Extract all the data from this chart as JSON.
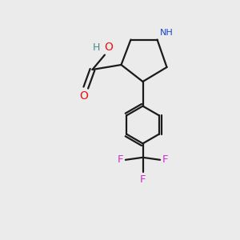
{
  "background_color": "#ebebeb",
  "bond_color": "#1a1a1a",
  "N_color": "#1a44cc",
  "O_color": "#ee1111",
  "F_color": "#cc33cc",
  "H_color": "#4a8a8a",
  "line_width": 1.6,
  "fig_width": 3.0,
  "fig_height": 3.0,
  "dpi": 100,
  "xlim": [
    0,
    10
  ],
  "ylim": [
    0,
    10
  ]
}
